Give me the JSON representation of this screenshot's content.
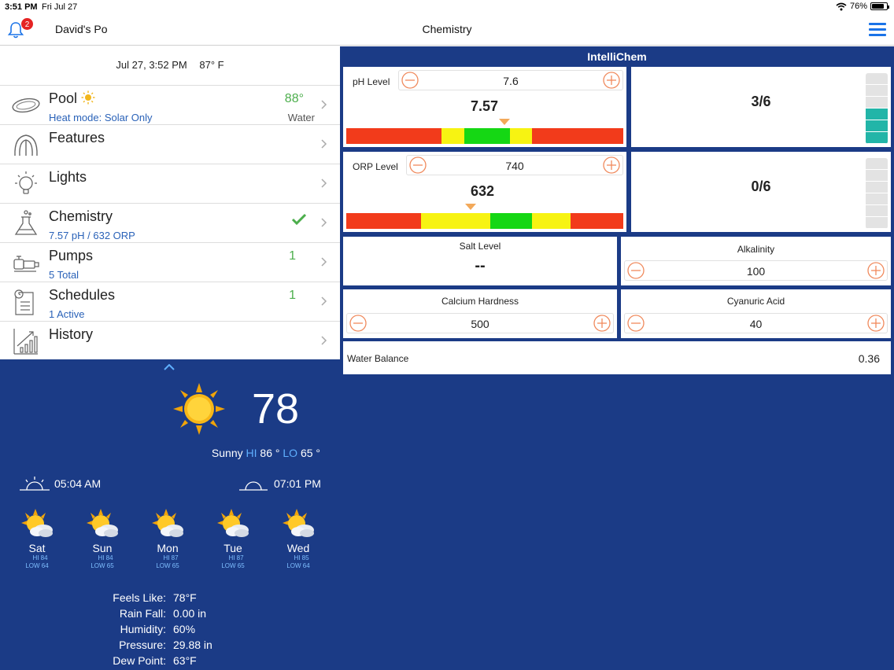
{
  "status_bar": {
    "time": "3:51 PM",
    "date": "Fri Jul 27",
    "battery": "76%",
    "battery_level": 0.76
  },
  "nav": {
    "notification_count": "2",
    "left_title": "David's Po",
    "center_title": "Chemistry"
  },
  "summary": {
    "datetime": "Jul 27, 3:52 PM",
    "air_temp": "87° F"
  },
  "menu": {
    "pool": {
      "title": "Pool",
      "subtitle": "Heat mode: Solar Only",
      "value": "88°",
      "value_label": "Water"
    },
    "features": {
      "title": "Features"
    },
    "lights": {
      "title": "Lights"
    },
    "chemistry": {
      "title": "Chemistry",
      "subtitle": "7.57 pH / 632 ORP"
    },
    "pumps": {
      "title": "Pumps",
      "subtitle": "5 Total",
      "value": "1"
    },
    "schedules": {
      "title": "Schedules",
      "subtitle": "1 Active",
      "value": "1"
    },
    "history": {
      "title": "History"
    }
  },
  "weather": {
    "temp": "78",
    "condition": "Sunny",
    "hi_label": "HI",
    "hi": "86 °",
    "lo_label": "LO",
    "lo": "65 °",
    "sunrise": "05:04 AM",
    "sunset": "07:01 PM",
    "forecast": [
      {
        "day": "Sat",
        "hi": "HI 84",
        "lo": "LOW 64"
      },
      {
        "day": "Sun",
        "hi": "HI 84",
        "lo": "LOW 65"
      },
      {
        "day": "Mon",
        "hi": "HI 87",
        "lo": "LOW 65"
      },
      {
        "day": "Tue",
        "hi": "HI 87",
        "lo": "LOW 65"
      },
      {
        "day": "Wed",
        "hi": "HI 85",
        "lo": "LOW 64"
      }
    ],
    "details": [
      {
        "label": "Feels Like:",
        "value": "78°F"
      },
      {
        "label": "Rain Fall:",
        "value": "0.00 in"
      },
      {
        "label": "Humidity:",
        "value": "60%"
      },
      {
        "label": "Pressure:",
        "value": "29.88 in"
      },
      {
        "label": "Dew Point:",
        "value": "63°F"
      }
    ]
  },
  "intellichem": {
    "header": "IntelliChem",
    "ph": {
      "label": "pH Level",
      "setpoint": "7.6",
      "reading": "7.57",
      "tank": "3/6",
      "tank_filled": 3,
      "tank_total": 6
    },
    "orp": {
      "label": "ORP Level",
      "setpoint": "740",
      "reading": "632",
      "tank": "0/6",
      "tank_filled": 0,
      "tank_total": 6
    },
    "salt": {
      "label": "Salt Level",
      "value": "--"
    },
    "alkalinity": {
      "label": "Alkalinity",
      "value": "100"
    },
    "calcium": {
      "label": "Calcium Hardness",
      "value": "500"
    },
    "cyanuric": {
      "label": "Cyanuric Acid",
      "value": "40"
    },
    "water_balance": {
      "label": "Water Balance",
      "value": "0.36"
    }
  },
  "colors": {
    "accent_blue": "#1a73e8",
    "panel_blue": "#1b3b86",
    "ok_green": "#4cae4c",
    "scale_red": "#f23b1b",
    "scale_yellow": "#f7f312",
    "scale_green": "#15d714",
    "tank_fill": "#22b5a8",
    "marker": "#f3a95a"
  }
}
